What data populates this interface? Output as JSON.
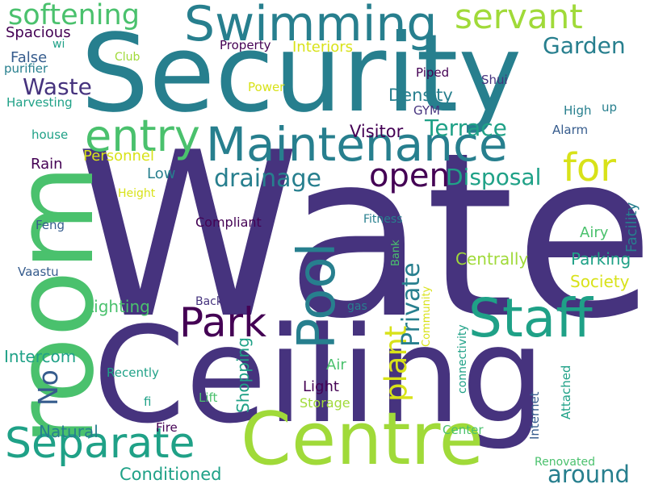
{
  "words": [
    {
      "text": "Water",
      "color": "#46337e"
    },
    {
      "text": "Security",
      "color": "#277f8e"
    },
    {
      "text": "Ceiling",
      "color": "#46337e"
    },
    {
      "text": "room",
      "color": "#4ac16d"
    },
    {
      "text": "Centre",
      "color": "#a0da39"
    },
    {
      "text": "Swimming",
      "color": "#277f8e"
    },
    {
      "text": "Maintenance",
      "color": "#277f8e"
    },
    {
      "text": "Separate",
      "color": "#1fa187"
    },
    {
      "text": "Staff",
      "color": "#1fa187"
    },
    {
      "text": "Pool",
      "color": "#277f8e"
    },
    {
      "text": "entry",
      "color": "#4ac16d"
    },
    {
      "text": "Park",
      "color": "#440154"
    },
    {
      "text": "servant",
      "color": "#a0da39"
    },
    {
      "text": "softening",
      "color": "#4ac16d"
    },
    {
      "text": "open",
      "color": "#440154"
    },
    {
      "text": "for",
      "color": "#d8e219"
    },
    {
      "text": "drainage",
      "color": "#277f8e"
    },
    {
      "text": "plant",
      "color": "#d8e219"
    },
    {
      "text": "Private",
      "color": "#277f8e"
    },
    {
      "text": "Disposal",
      "color": "#1fa187"
    },
    {
      "text": "Terrace",
      "color": "#1fa187"
    },
    {
      "text": "Garden",
      "color": "#277f8e"
    },
    {
      "text": "around",
      "color": "#277f8e"
    },
    {
      "text": "Waste",
      "color": "#46337e"
    },
    {
      "text": "No",
      "color": "#365c8d"
    },
    {
      "text": "Density",
      "color": "#277f8e"
    },
    {
      "text": "Visitor",
      "color": "#440154"
    },
    {
      "text": "Conditioned",
      "color": "#1fa187"
    },
    {
      "text": "Intercom",
      "color": "#1fa187"
    },
    {
      "text": "Centrally",
      "color": "#a0da39"
    },
    {
      "text": "Parking",
      "color": "#1fa187"
    },
    {
      "text": "Society",
      "color": "#d8e219"
    },
    {
      "text": "Lighting",
      "color": "#4ac16d"
    },
    {
      "text": "Natural",
      "color": "#277f8e"
    },
    {
      "text": "Shopping",
      "color": "#1fa187"
    },
    {
      "text": "Spacious",
      "color": "#440154"
    },
    {
      "text": "False",
      "color": "#365c8d"
    },
    {
      "text": "Rain",
      "color": "#440154"
    },
    {
      "text": "Low",
      "color": "#277f8e"
    },
    {
      "text": "Personnel",
      "color": "#d8e219"
    },
    {
      "text": "Air",
      "color": "#4ac16d"
    },
    {
      "text": "Light",
      "color": "#440154"
    },
    {
      "text": "Airy",
      "color": "#4ac16d"
    },
    {
      "text": "Interiors",
      "color": "#d8e219"
    },
    {
      "text": "Facility",
      "color": "#277f8e"
    },
    {
      "text": "Compliant",
      "color": "#440154"
    },
    {
      "text": "Internet",
      "color": "#365c8d"
    },
    {
      "text": "connectivity",
      "color": "#1fa187"
    },
    {
      "text": "Storage",
      "color": "#a0da39"
    },
    {
      "text": "Attached",
      "color": "#1fa187"
    },
    {
      "text": "Property",
      "color": "#440154"
    },
    {
      "text": "Harvesting",
      "color": "#1fa187"
    },
    {
      "text": "purifier",
      "color": "#277f8e"
    },
    {
      "text": "house",
      "color": "#1fa187"
    },
    {
      "text": "Feng",
      "color": "#365c8d"
    },
    {
      "text": "Vaastu",
      "color": "#365c8d"
    },
    {
      "text": "Recently",
      "color": "#1fa187"
    },
    {
      "text": "Fire",
      "color": "#440154"
    },
    {
      "text": "Lift",
      "color": "#4ac16d"
    },
    {
      "text": "fi",
      "color": "#1fa187"
    },
    {
      "text": "wi",
      "color": "#1fa187"
    },
    {
      "text": "Club",
      "color": "#a0da39"
    },
    {
      "text": "Power",
      "color": "#d8e219"
    },
    {
      "text": "Piped",
      "color": "#440154"
    },
    {
      "text": "Shui",
      "color": "#46337e"
    },
    {
      "text": "GYM",
      "color": "#46337e"
    },
    {
      "text": "High",
      "color": "#277f8e"
    },
    {
      "text": "up",
      "color": "#277f8e"
    },
    {
      "text": "Alarm",
      "color": "#365c8d"
    },
    {
      "text": "Height",
      "color": "#d8e219"
    },
    {
      "text": "Fitness",
      "color": "#277f8e"
    },
    {
      "text": "Bank",
      "color": "#4ac16d"
    },
    {
      "text": "Community",
      "color": "#d8e219"
    },
    {
      "text": "Back",
      "color": "#46337e"
    },
    {
      "text": "gas",
      "color": "#277f8e"
    },
    {
      "text": "Center",
      "color": "#4ac16d"
    },
    {
      "text": "Renovated",
      "color": "#4ac16d"
    }
  ]
}
